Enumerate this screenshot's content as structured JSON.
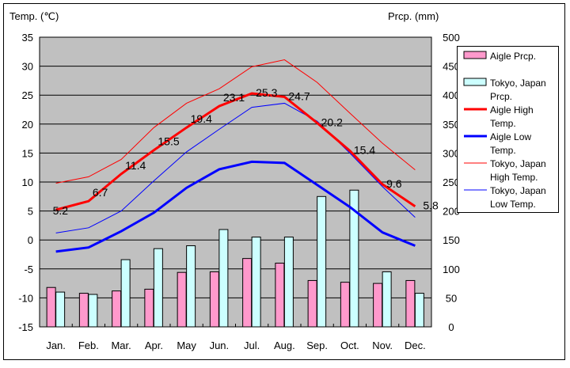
{
  "chart_data": {
    "type": "bar+line",
    "title": "",
    "ylabel_left": "Temp. (℃)",
    "ylabel_right": "Prcp. (mm)",
    "ylim_left": [
      -15,
      35
    ],
    "ylim_right": [
      0,
      500
    ],
    "yticks_left": [
      "35",
      "30",
      "25",
      "20",
      "15",
      "10",
      "5",
      "0",
      "-5",
      "-10",
      "-15"
    ],
    "yticks_right": [
      "500",
      "450",
      "400",
      "350",
      "300",
      "250",
      "200",
      "150",
      "100",
      "50",
      "0"
    ],
    "categories": [
      "Jan.",
      "Feb.",
      "Mar.",
      "Apr.",
      "May",
      "Jun.",
      "Jul.",
      "Aug.",
      "Sep.",
      "Oct.",
      "Nov.",
      "Dec."
    ],
    "grid": true,
    "legend_position": "right",
    "bar_series": [
      {
        "name": "Aigle Prcp.",
        "color": "#ff99cc",
        "values": [
          68,
          58,
          62,
          65,
          94,
          95,
          118,
          110,
          80,
          77,
          75,
          80
        ]
      },
      {
        "name": "Tokyo, Japan Prcp.",
        "color": "#ccffff",
        "values": [
          60,
          56,
          116,
          135,
          140,
          168,
          155,
          155,
          225,
          236,
          95,
          58
        ]
      }
    ],
    "line_series": [
      {
        "name": "Aigle High Temp.",
        "color": "#ff0000",
        "width": 3,
        "labeled": true,
        "values": [
          5.2,
          6.7,
          11.4,
          15.5,
          19.4,
          23.1,
          25.3,
          24.7,
          20.2,
          15.4,
          9.6,
          5.8
        ]
      },
      {
        "name": "Aigle Low Temp.",
        "color": "#0000ff",
        "width": 3,
        "labeled": false,
        "values": [
          -2.0,
          -1.3,
          1.5,
          4.7,
          9.0,
          12.2,
          13.5,
          13.3,
          9.5,
          5.7,
          1.3,
          -1.0
        ]
      },
      {
        "name": "Tokyo, Japan High Temp.",
        "color": "#ff0000",
        "width": 1,
        "labeled": false,
        "values": [
          9.8,
          10.9,
          13.9,
          19.4,
          23.6,
          26.1,
          29.9,
          31.1,
          27.2,
          21.9,
          16.7,
          12.1
        ]
      },
      {
        "name": "Tokyo, Japan Low Temp.",
        "color": "#0000ff",
        "width": 1,
        "labeled": false,
        "values": [
          1.2,
          2.1,
          5.0,
          10.2,
          15.2,
          19.1,
          22.9,
          23.6,
          20.5,
          15.0,
          9.2,
          3.9
        ]
      }
    ],
    "data_labels": [
      "5.2",
      "6.7",
      "11.4",
      "15.5",
      "19.4",
      "23.1",
      "25.3",
      "24.7",
      "20.2",
      "15.4",
      "9.6",
      "5.8"
    ],
    "legend": [
      {
        "lines": [
          "Aigle Prcp."
        ],
        "kind": "bar",
        "color": "#ff99cc"
      },
      {
        "lines": [
          "Tokyo, Japan",
          "Prcp."
        ],
        "kind": "bar",
        "color": "#ccffff"
      },
      {
        "lines": [
          "Aigle High",
          "Temp."
        ],
        "kind": "line",
        "color": "#ff0000",
        "width": 3
      },
      {
        "lines": [
          "Aigle Low",
          "Temp."
        ],
        "kind": "line",
        "color": "#0000ff",
        "width": 3
      },
      {
        "lines": [
          "Tokyo, Japan",
          "High Temp."
        ],
        "kind": "line",
        "color": "#ff0000",
        "width": 1
      },
      {
        "lines": [
          "Tokyo, Japan",
          "Low Temp."
        ],
        "kind": "line",
        "color": "#0000ff",
        "width": 1
      }
    ]
  }
}
